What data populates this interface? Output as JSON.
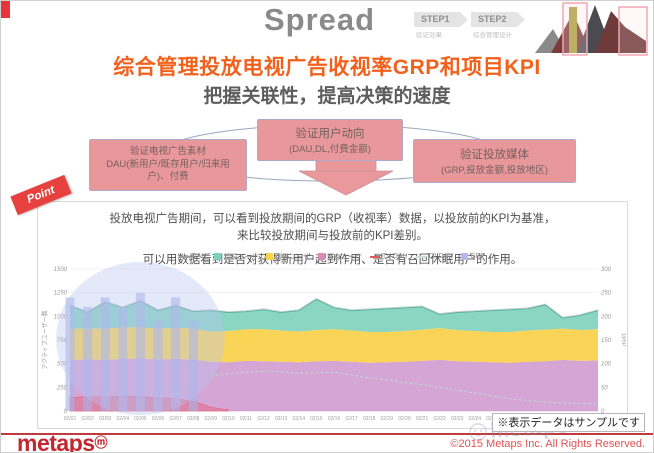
{
  "slide": {
    "header": {
      "brand": "Spread",
      "steps": [
        {
          "label": "STEP1",
          "caption": "验证効果"
        },
        {
          "label": "STEP2",
          "caption": "综合管理设计"
        }
      ]
    },
    "title": "综合管理投放电视广告收视率GRP和项目KPI",
    "subtitle": "把握关联性，提高决策的速度",
    "flow": {
      "left_box": {
        "lines": [
          "验证电视广告素材",
          "DAU(新用户/既存用户/归来用",
          "户)、付费"
        ]
      },
      "center_box": {
        "lines": [
          "验证用户动向",
          "(DAU,DL,付费金额)"
        ]
      },
      "right_box": {
        "lines": [
          "验证投放媒体",
          "(GRP,投放金额,投放地区)"
        ]
      }
    },
    "point_label": "Point",
    "body": {
      "p1_line1": "投放电视广告期间，可以看到投放期间的GRP（收视率）数据，以投放前的KPI为基准，",
      "p1_line2": "来比较投放期间与投放前的KPI差别。",
      "p2": "可以用数据看到是否对获得新用户起到作用、是否有召回休眠用户的作用。"
    },
    "footer": {
      "logo": "metaps",
      "logo_mark": "ⓜ",
      "note": "※表示データはサンプルです",
      "copyright": "©2015 Metaps Inc. All Rights Reserved.",
      "watermark": "Metaps"
    }
  },
  "chart_data": {
    "type": "area",
    "title": "",
    "x": [
      "02/01",
      "02/02",
      "02/03",
      "02/04",
      "02/05",
      "02/06",
      "02/07",
      "02/08",
      "02/09",
      "02/10",
      "02/11",
      "02/12",
      "02/13",
      "02/14",
      "02/15",
      "02/16",
      "02/17",
      "02/18",
      "02/19",
      "02/20",
      "02/21",
      "02/22",
      "02/23",
      "02/24",
      "02/25",
      "02/26",
      "02/27",
      "02/28",
      "03/01",
      "03/02",
      "03/03"
    ],
    "left_axis": {
      "label": "アクティブユーザー数",
      "ticks": [
        0,
        250,
        500,
        750,
        1000,
        1250,
        1500
      ],
      "range": [
        0,
        1500
      ]
    },
    "right_axis": {
      "label": "GRP",
      "ticks": [
        0,
        50,
        100,
        150,
        200,
        250,
        300
      ],
      "range": [
        0,
        300
      ]
    },
    "legend": [
      {
        "label": "DAU",
        "swatch": "line",
        "color": "#9e9e9e"
      },
      {
        "label": "新規ユーザ",
        "swatch": "box",
        "color": "#7ed0bd"
      },
      {
        "label": "復帰ユーザ",
        "swatch": "box",
        "color": "#fad24e"
      },
      {
        "label": "既存ユーザ",
        "swatch": "box",
        "color": "#d98bb4"
      },
      {
        "label": "TV DAU",
        "swatch": "line",
        "color": "#e05a5a"
      },
      {
        "label": "TV DAU",
        "swatch": "line",
        "color": "#c9ded9"
      },
      {
        "label": "GRP",
        "swatch": "box",
        "color": "#b3baeb"
      }
    ],
    "series": [
      {
        "name": "既存ユーザ",
        "color": "#cf98cf",
        "values": [
          540,
          545,
          540,
          550,
          555,
          545,
          550,
          545,
          520,
          515,
          530,
          525,
          520,
          515,
          525,
          530,
          520,
          510,
          515,
          520,
          530,
          540,
          525,
          520,
          515,
          510,
          520,
          525,
          540,
          530,
          535
        ]
      },
      {
        "name": "復帰ユーザ",
        "color": "#fad24e",
        "values": [
          330,
          325,
          330,
          335,
          330,
          325,
          330,
          325,
          320,
          330,
          335,
          340,
          330,
          325,
          330,
          335,
          330,
          325,
          320,
          325,
          330,
          335,
          330,
          325,
          320,
          325,
          330,
          335,
          330,
          325,
          330
        ]
      },
      {
        "name": "新規ユーザ",
        "color": "#7ed0bd",
        "values": [
          240,
          170,
          280,
          205,
          275,
          190,
          230,
          180,
          220,
          195,
          185,
          205,
          190,
          220,
          325,
          225,
          210,
          235,
          245,
          245,
          240,
          145,
          185,
          205,
          225,
          235,
          230,
          260,
          110,
          155,
          195
        ]
      }
    ],
    "grp_bars": {
      "axis": "right",
      "color": "#a9b2e6",
      "values": [
        240,
        220,
        240,
        220,
        250,
        190,
        240,
        190
      ]
    },
    "tv_dau": {
      "color": "#e26b85",
      "values": [
        140,
        150,
        145,
        155,
        150,
        140,
        130,
        100,
        40,
        10
      ]
    },
    "tv_dau_dashed": {
      "color": "#bfd9d3",
      "start_index": 8,
      "values": [
        370,
        395,
        410,
        420,
        415,
        400,
        405,
        410,
        380,
        350,
        330,
        300,
        280,
        250,
        220,
        190,
        160,
        130,
        110,
        95,
        85,
        80,
        75
      ]
    },
    "highlight_ellipse": {
      "color": "#b9c6f2",
      "opacity": 0.38,
      "from_index": 0,
      "to_index": 8
    }
  }
}
